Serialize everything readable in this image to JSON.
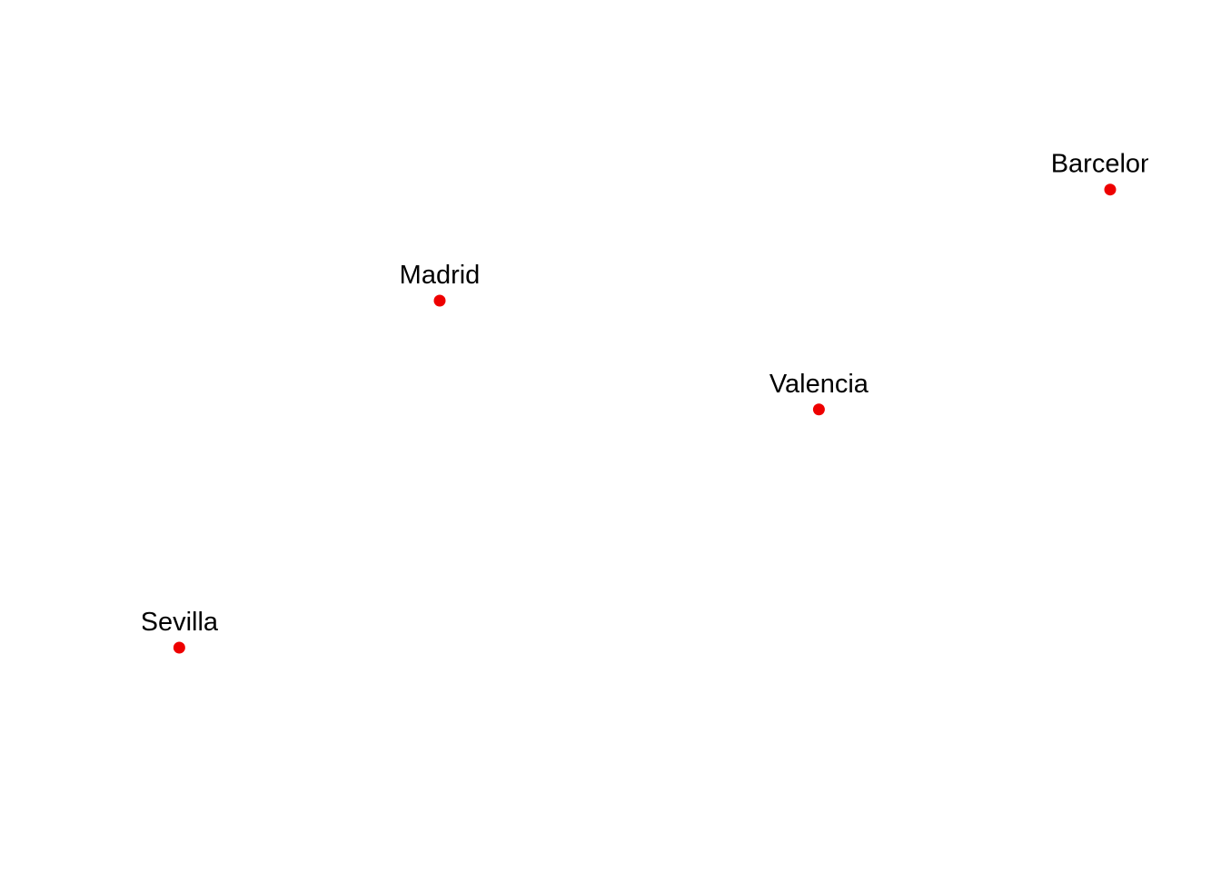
{
  "map": {
    "marker_color": "#ee0000",
    "label_color": "#000000",
    "cities": [
      {
        "name": "Madrid",
        "label": "Madrid",
        "lon": -3.7,
        "lat": 40.42
      },
      {
        "name": "Barcelona",
        "label": "Barcelona",
        "lon": 2.17,
        "lat": 41.39
      },
      {
        "name": "Valencia",
        "label": "Valencia",
        "lon": -0.38,
        "lat": 39.47
      },
      {
        "name": "Sevilla",
        "label": "Sevilla",
        "lon": -5.98,
        "lat": 37.39
      }
    ]
  }
}
